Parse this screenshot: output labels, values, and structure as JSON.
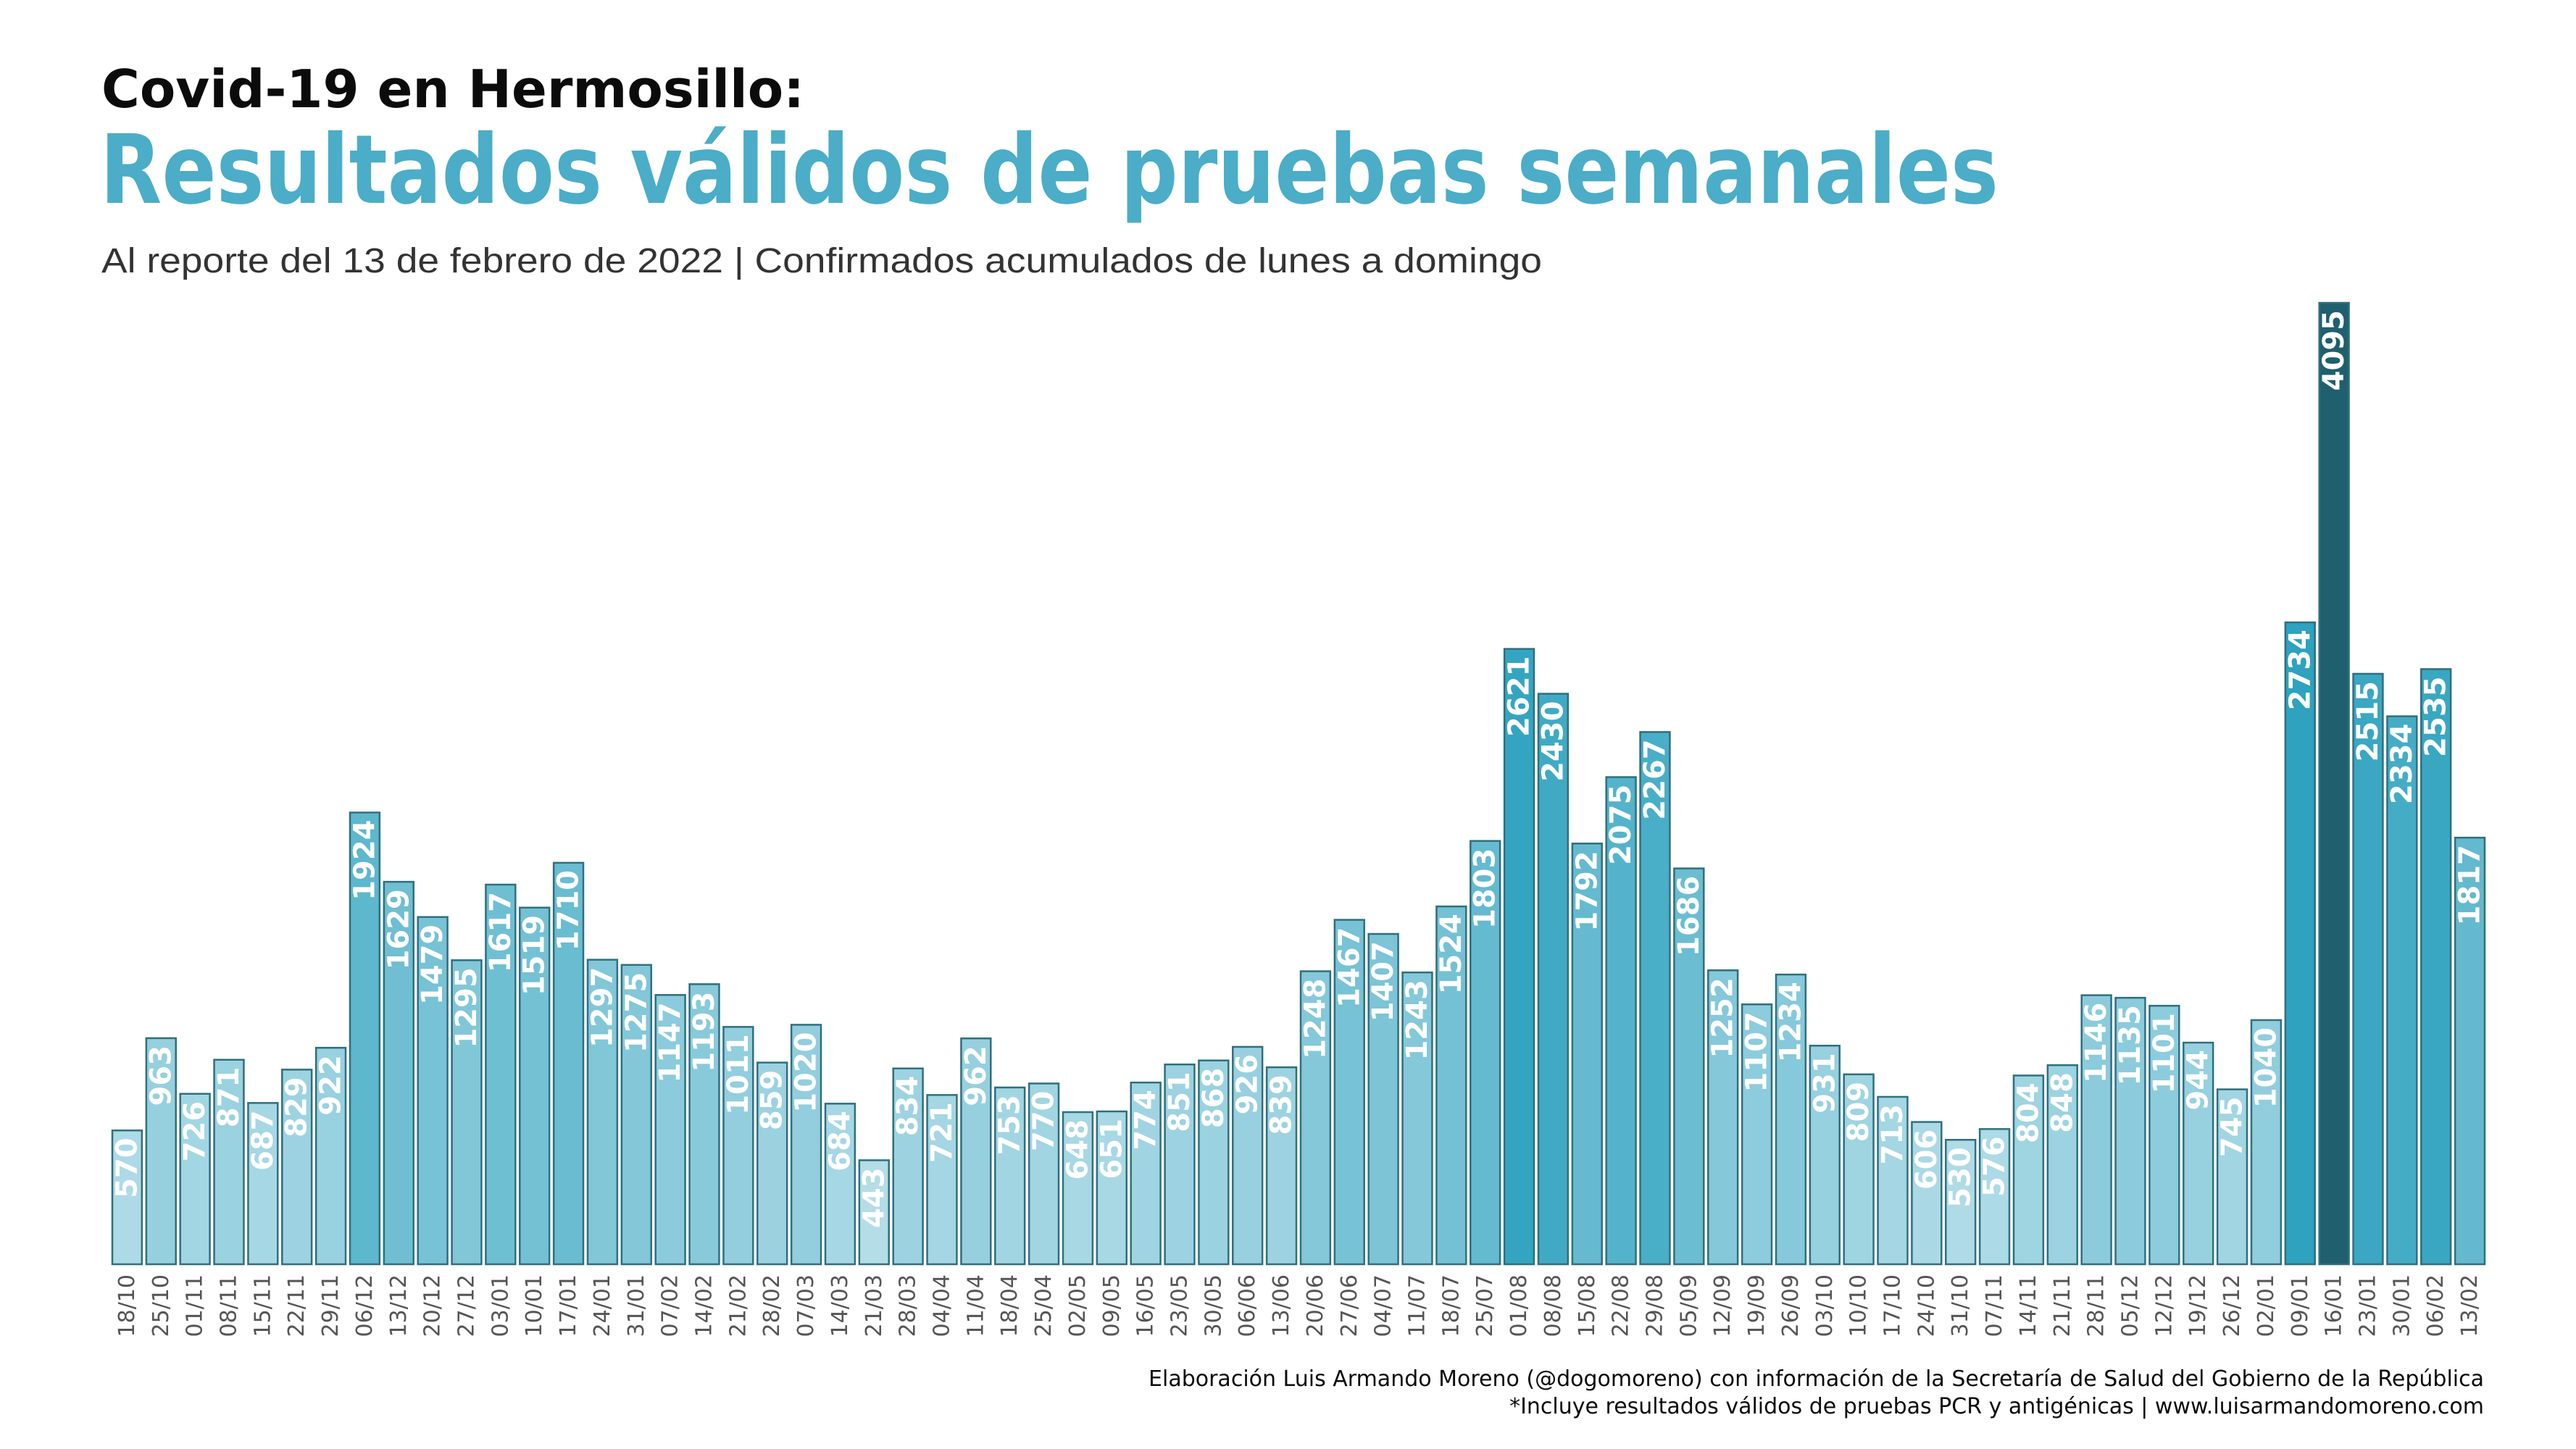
{
  "header": {
    "title": "Covid-19 en Hermosillo:",
    "headline": "Resultados válidos de pruebas semanales",
    "subtitle": "Al reporte del 13 de febrero de 2022 | Confirmados acumulados de lunes a domingo"
  },
  "footer": {
    "credit": "Elaboración Luis Armando Moreno (@dogomoreno) con información de la Secretaría de Salud del Gobierno de la República",
    "note": "*Incluye resultados válidos de pruebas PCR y antigénicas | www.luisarmandomoreno.com"
  },
  "colors": {
    "title": "#0b0b0b",
    "headline": "#4badc7",
    "subtitle": "#333333",
    "label_text": "#ffffff",
    "tick_text": "#555555",
    "bar_stroke": "#2f6f7e",
    "bar_scale_low": "#b4dde8",
    "bar_scale_high": "#2aa0bd",
    "bar_peak": "#1f5f6e"
  },
  "chart_data": {
    "type": "bar",
    "grid": false,
    "legend": "none",
    "ylim": [
      0,
      4095
    ],
    "categories": [
      "18/10",
      "25/10",
      "01/11",
      "08/11",
      "15/11",
      "22/11",
      "29/11",
      "06/12",
      "13/12",
      "20/12",
      "27/12",
      "03/01",
      "10/01",
      "17/01",
      "24/01",
      "31/01",
      "07/02",
      "14/02",
      "21/02",
      "28/02",
      "07/03",
      "14/03",
      "21/03",
      "28/03",
      "04/04",
      "11/04",
      "18/04",
      "25/04",
      "02/05",
      "09/05",
      "16/05",
      "23/05",
      "30/05",
      "06/06",
      "13/06",
      "20/06",
      "27/06",
      "04/07",
      "11/07",
      "18/07",
      "25/07",
      "01/08",
      "08/08",
      "15/08",
      "22/08",
      "29/08",
      "05/09",
      "12/09",
      "19/09",
      "26/09",
      "03/10",
      "10/10",
      "17/10",
      "24/10",
      "31/10",
      "07/11",
      "14/11",
      "21/11",
      "28/11",
      "05/12",
      "12/12",
      "19/12",
      "26/12",
      "02/01",
      "09/01",
      "16/01",
      "23/01",
      "30/01",
      "06/02",
      "13/02"
    ],
    "values": [
      570,
      963,
      726,
      871,
      687,
      829,
      922,
      1924,
      1629,
      1479,
      1295,
      1617,
      1519,
      1710,
      1297,
      1275,
      1147,
      1193,
      1011,
      859,
      1020,
      684,
      443,
      834,
      721,
      962,
      753,
      770,
      648,
      651,
      774,
      851,
      868,
      926,
      839,
      1248,
      1467,
      1407,
      1243,
      1524,
      1803,
      2621,
      2430,
      1792,
      2075,
      2267,
      1686,
      1252,
      1107,
      1234,
      931,
      809,
      713,
      606,
      530,
      576,
      804,
      848,
      1146,
      1135,
      1101,
      944,
      745,
      1040,
      2734,
      4095,
      2515,
      2334,
      2535,
      1817
    ]
  }
}
